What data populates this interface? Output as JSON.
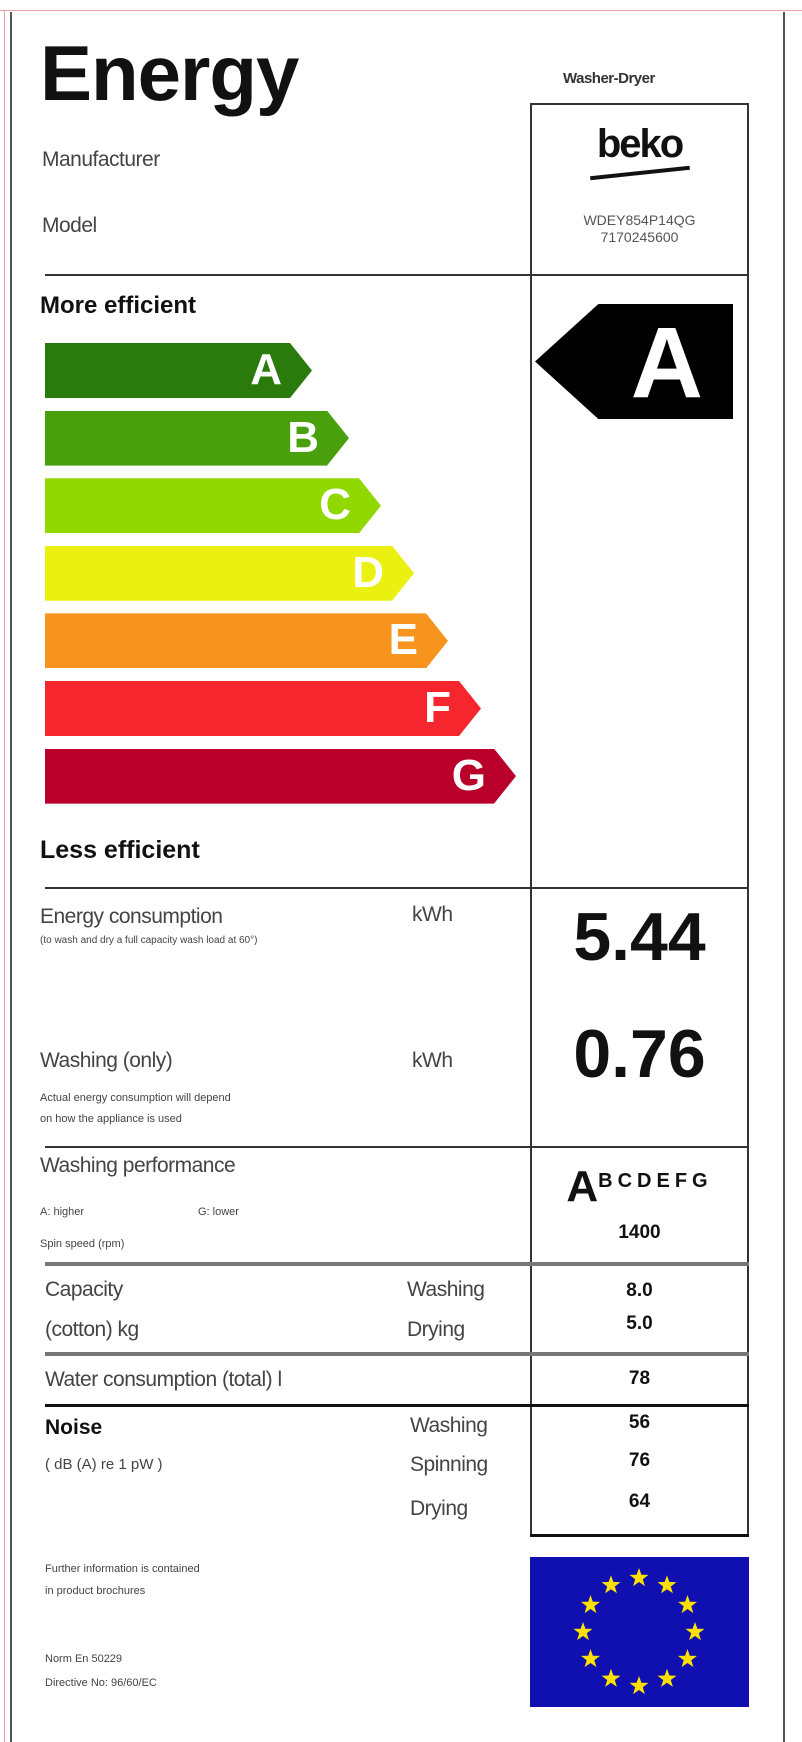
{
  "header": {
    "title": "Energy",
    "appliance_type": "Washer-Dryer",
    "manufacturer_label": "Manufacturer",
    "model_label": "Model",
    "brand_logo": "beko",
    "model_code": "WDEY854P14QG",
    "model_number": "7170245600"
  },
  "scale": {
    "more_label": "More efficient",
    "less_label": "Less efficient",
    "classes": [
      {
        "letter": "A",
        "color": "#2a7a0c"
      },
      {
        "letter": "B",
        "color": "#4aa00c"
      },
      {
        "letter": "C",
        "color": "#90d800"
      },
      {
        "letter": "D",
        "color": "#eaf010"
      },
      {
        "letter": "E",
        "color": "#f7941d"
      },
      {
        "letter": "F",
        "color": "#f5262e"
      },
      {
        "letter": "G",
        "color": "#b8002a"
      }
    ],
    "rating": "A"
  },
  "energy": {
    "label": "Energy consumption",
    "note": "(to wash and dry a full capacity wash load at 60°)",
    "unit": "kWh",
    "value": "5.44"
  },
  "washing_only": {
    "label": "Washing (only)",
    "note1": "Actual energy consumption will depend",
    "note2": "on how the appliance is used",
    "unit": "kWh",
    "value": "0.76"
  },
  "performance": {
    "label": "Washing performance",
    "higher": "A: higher",
    "lower": "G: lower",
    "spin_label": "Spin speed (rpm)",
    "rating": "A",
    "others": "BCDEFG",
    "spin_value": "1400"
  },
  "capacity": {
    "label1": "Capacity",
    "label2": "(cotton) kg",
    "washing_label": "Washing",
    "drying_label": "Drying",
    "washing_value": "8.0",
    "drying_value": "5.0"
  },
  "water": {
    "label": "Water consumption (total) l",
    "value": "78"
  },
  "noise": {
    "label": "Noise",
    "unit": "( dB (A) re 1 pW )",
    "washing_label": "Washing",
    "spinning_label": "Spinning",
    "drying_label": "Drying",
    "washing_value": "56",
    "spinning_value": "76",
    "drying_value": "64"
  },
  "footer": {
    "info1": "Further information is contained",
    "info2": "in product brochures",
    "norm": "Norm En 50229",
    "directive": "Directive No: 96/60/EC"
  },
  "colors": {
    "eu_blue": "#1010b0",
    "eu_star": "#ffe000"
  }
}
